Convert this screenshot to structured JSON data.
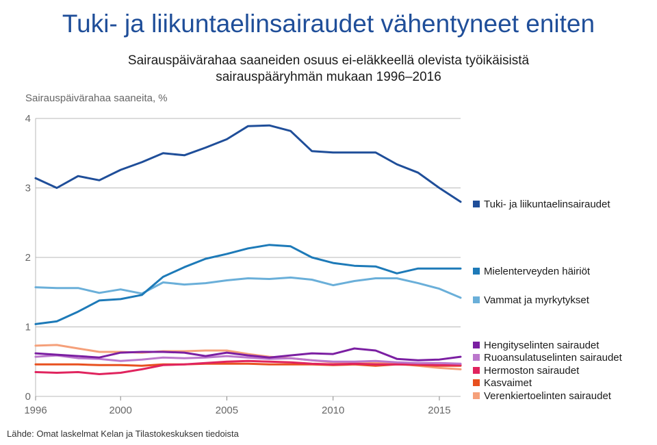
{
  "chart_data": {
    "type": "line",
    "title": "Tuki- ja liikuntaelinsairaudet vähentyneet eniten",
    "subtitle": [
      "Sairauspäivärahaa saaneiden osuus ei-eläkkeellä olevista työikäisistä",
      "sairauspääryhmän mukaan 1996–2016"
    ],
    "ylabel": "Sairauspäivärahaa saaneita, %",
    "xlabel": "",
    "source": "Lähde: Omat laskelmat Kelan ja Tilastokeskuksen tiedoista",
    "x": [
      1996,
      1997,
      1998,
      1999,
      2000,
      2001,
      2002,
      2003,
      2004,
      2005,
      2006,
      2007,
      2008,
      2009,
      2010,
      2011,
      2012,
      2013,
      2014,
      2015,
      2016
    ],
    "xlim": [
      1996,
      2016
    ],
    "ylim": [
      0,
      4
    ],
    "xticks": [
      "1996",
      "2000",
      "2005",
      "2010",
      "2015"
    ],
    "xtick_values": [
      1996,
      2000,
      2005,
      2010,
      2015
    ],
    "yticks": [
      "0",
      "1",
      "2",
      "3",
      "4"
    ],
    "ytick_values": [
      0,
      1,
      2,
      3,
      4
    ],
    "grid": "horizontal",
    "legend": "right",
    "series": [
      {
        "name": "Tuki- ja liikuntaelinsairaudet",
        "color": "#1f4e99",
        "values": [
          3.14,
          3.0,
          3.17,
          3.11,
          3.26,
          3.37,
          3.5,
          3.47,
          3.58,
          3.7,
          3.89,
          3.9,
          3.82,
          3.53,
          3.51,
          3.51,
          3.51,
          3.34,
          3.22,
          3.0,
          2.8
        ]
      },
      {
        "name": "Mielenterveyden häiriöt",
        "color": "#1d7ab8",
        "values": [
          1.04,
          1.08,
          1.22,
          1.38,
          1.4,
          1.46,
          1.72,
          1.86,
          1.98,
          2.05,
          2.13,
          2.18,
          2.16,
          2.0,
          1.92,
          1.88,
          1.87,
          1.77,
          1.84,
          1.84,
          1.84
        ]
      },
      {
        "name": "Vammat ja myrkytykset",
        "color": "#6aafd9",
        "values": [
          1.57,
          1.56,
          1.56,
          1.49,
          1.54,
          1.48,
          1.64,
          1.61,
          1.63,
          1.67,
          1.7,
          1.69,
          1.71,
          1.68,
          1.6,
          1.66,
          1.7,
          1.7,
          1.63,
          1.55,
          1.42
        ]
      },
      {
        "name": "Hengityselinten sairaudet",
        "color": "#7b1fa2",
        "values": [
          0.62,
          0.6,
          0.58,
          0.56,
          0.63,
          0.64,
          0.64,
          0.63,
          0.58,
          0.63,
          0.59,
          0.56,
          0.59,
          0.62,
          0.61,
          0.69,
          0.66,
          0.54,
          0.52,
          0.53,
          0.57
        ]
      },
      {
        "name": "Ruoansulatuselinten sairaudet",
        "color": "#bb77cc",
        "values": [
          0.57,
          0.59,
          0.55,
          0.54,
          0.51,
          0.53,
          0.56,
          0.55,
          0.56,
          0.58,
          0.56,
          0.54,
          0.55,
          0.52,
          0.5,
          0.5,
          0.51,
          0.49,
          0.48,
          0.48,
          0.47
        ]
      },
      {
        "name": "Hermoston sairaudet",
        "color": "#e0245e",
        "values": [
          0.35,
          0.34,
          0.35,
          0.32,
          0.34,
          0.39,
          0.45,
          0.46,
          0.48,
          0.5,
          0.51,
          0.5,
          0.49,
          0.47,
          0.46,
          0.47,
          0.46,
          0.46,
          0.46,
          0.45,
          0.45
        ]
      },
      {
        "name": "Kasvaimet",
        "color": "#e8501f",
        "values": [
          0.46,
          0.46,
          0.46,
          0.45,
          0.45,
          0.44,
          0.46,
          0.46,
          0.47,
          0.47,
          0.47,
          0.46,
          0.46,
          0.46,
          0.45,
          0.46,
          0.44,
          0.46,
          0.45,
          0.44,
          0.44
        ]
      },
      {
        "name": "Verenkiertoelinten sairaudet",
        "color": "#f5a07a",
        "values": [
          0.73,
          0.74,
          0.69,
          0.64,
          0.64,
          0.63,
          0.65,
          0.65,
          0.66,
          0.66,
          0.61,
          0.57,
          0.55,
          0.52,
          0.49,
          0.47,
          0.48,
          0.47,
          0.44,
          0.41,
          0.39
        ]
      }
    ]
  }
}
